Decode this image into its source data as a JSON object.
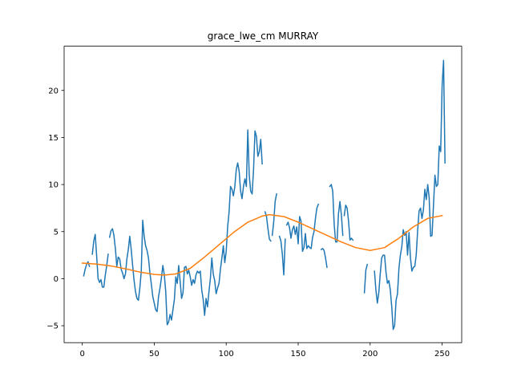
{
  "chart_data": {
    "type": "line",
    "title": "grace_lwe_cm MURRAY",
    "xlabel": "",
    "ylabel": "",
    "xlim": [
      -12.6,
      263.6
    ],
    "ylim": [
      -6.8,
      24.7
    ],
    "xticks": [
      0,
      50,
      100,
      150,
      200,
      250
    ],
    "yticks": [
      -5,
      0,
      5,
      10,
      15,
      20
    ],
    "grid": false,
    "legend": "none",
    "series": [
      {
        "color": "#1f77b4",
        "segments": [
          [
            [
              1,
              0.3
            ],
            [
              2,
              1.0
            ],
            [
              3,
              1.5
            ],
            [
              4,
              1.8
            ],
            [
              5,
              1.3
            ]
          ],
          [
            [
              7,
              2.6
            ],
            [
              8,
              4.0
            ],
            [
              9,
              4.7
            ],
            [
              10,
              2.4
            ],
            [
              11,
              0.0
            ],
            [
              12,
              -0.4
            ],
            [
              13,
              -0.1
            ],
            [
              14,
              -0.9
            ],
            [
              15,
              -0.9
            ],
            [
              16,
              0.4
            ],
            [
              17,
              1.4
            ],
            [
              18,
              2.6
            ]
          ],
          [
            [
              19,
              4.4
            ],
            [
              20,
              5.1
            ],
            [
              21,
              5.3
            ],
            [
              22,
              4.6
            ],
            [
              23,
              3.2
            ],
            [
              24,
              1.3
            ],
            [
              25,
              2.3
            ],
            [
              26,
              2.1
            ],
            [
              27,
              1.0
            ],
            [
              28,
              0.6
            ],
            [
              29,
              0.0
            ],
            [
              30,
              0.5
            ],
            [
              31,
              2.1
            ],
            [
              32,
              3.1
            ],
            [
              33,
              4.5
            ],
            [
              34,
              3.1
            ],
            [
              35,
              1.4
            ],
            [
              36,
              -0.2
            ],
            [
              37,
              -1.4
            ],
            [
              38,
              -2.1
            ],
            [
              39,
              -2.3
            ],
            [
              40,
              -1.0
            ],
            [
              41,
              0.8
            ],
            [
              42,
              6.2
            ],
            [
              43,
              4.5
            ],
            [
              44,
              3.5
            ],
            [
              45,
              3.0
            ],
            [
              46,
              2.2
            ],
            [
              47,
              0.6
            ],
            [
              48,
              -0.6
            ],
            [
              49,
              -1.9
            ],
            [
              50,
              -2.6
            ],
            [
              51,
              -3.3
            ],
            [
              52,
              -3.5
            ],
            [
              53,
              -1.9
            ],
            [
              54,
              -1.0
            ],
            [
              55,
              0.1
            ],
            [
              56,
              1.4
            ],
            [
              57,
              0.4
            ],
            [
              58,
              -1.4
            ],
            [
              59,
              -4.9
            ],
            [
              60,
              -4.6
            ],
            [
              61,
              -3.8
            ],
            [
              62,
              -4.4
            ],
            [
              63,
              -3.3
            ],
            [
              64,
              -2.2
            ],
            [
              65,
              0.2
            ],
            [
              66,
              -0.5
            ],
            [
              67,
              1.4
            ],
            [
              68,
              -0.3
            ],
            [
              69,
              -2.1
            ],
            [
              70,
              -1.5
            ],
            [
              71,
              1.2
            ],
            [
              72,
              1.3
            ],
            [
              73,
              0.5
            ],
            [
              74,
              0.9
            ],
            [
              75,
              0.2
            ],
            [
              76,
              -0.7
            ],
            [
              77,
              -0.1
            ],
            [
              78,
              -0.5
            ],
            [
              79,
              0.4
            ],
            [
              80,
              0.8
            ],
            [
              81,
              0.6
            ],
            [
              82,
              0.8
            ],
            [
              83,
              -1.2
            ],
            [
              84,
              -2.2
            ],
            [
              85,
              -3.9
            ],
            [
              86,
              -2.1
            ],
            [
              87,
              -3.0
            ],
            [
              88,
              -1.4
            ],
            [
              89,
              0.0
            ],
            [
              90,
              2.2
            ],
            [
              91,
              0.5
            ],
            [
              92,
              -0.2
            ],
            [
              93,
              -1.6
            ],
            [
              94,
              -1.0
            ],
            [
              95,
              -0.5
            ],
            [
              96,
              1.0
            ],
            [
              97,
              2.2
            ],
            [
              98,
              3.5
            ],
            [
              99,
              1.7
            ],
            [
              100,
              2.9
            ],
            [
              101,
              5.5
            ],
            [
              102,
              7.1
            ],
            [
              103,
              9.8
            ],
            [
              104,
              9.5
            ],
            [
              105,
              8.8
            ],
            [
              106,
              9.8
            ],
            [
              107,
              11.6
            ],
            [
              108,
              12.3
            ],
            [
              109,
              11.4
            ],
            [
              110,
              9.3
            ],
            [
              111,
              8.5
            ],
            [
              112,
              9.8
            ],
            [
              113,
              10.6
            ],
            [
              114,
              9.8
            ],
            [
              115,
              15.8
            ],
            [
              116,
              11.0
            ],
            [
              117,
              9.3
            ],
            [
              118,
              9.0
            ],
            [
              119,
              11.6
            ],
            [
              120,
              15.7
            ],
            [
              121,
              15.1
            ],
            [
              122,
              13.0
            ],
            [
              123,
              13.5
            ],
            [
              124,
              14.8
            ],
            [
              125,
              12.2
            ]
          ],
          [
            [
              127,
              7.1
            ],
            [
              128,
              6.6
            ],
            [
              129,
              5.3
            ],
            [
              130,
              4.2
            ],
            [
              131,
              4.0
            ]
          ],
          [
            [
              132,
              4.6
            ],
            [
              133,
              6.0
            ],
            [
              134,
              8.2
            ],
            [
              135,
              9.0
            ]
          ],
          [
            [
              137,
              4.5
            ],
            [
              138,
              4.0
            ],
            [
              139,
              2.6
            ],
            [
              140,
              0.4
            ],
            [
              141,
              4.2
            ]
          ],
          [
            [
              142,
              5.7
            ],
            [
              143,
              6.0
            ],
            [
              144,
              5.4
            ],
            [
              145,
              4.3
            ],
            [
              146,
              5.2
            ],
            [
              147,
              5.6
            ],
            [
              148,
              4.7
            ],
            [
              149,
              5.5
            ],
            [
              150,
              3.7
            ],
            [
              151,
              6.6
            ],
            [
              152,
              6.1
            ],
            [
              153,
              2.9
            ],
            [
              154,
              3.3
            ],
            [
              155,
              4.8
            ],
            [
              156,
              3.2
            ],
            [
              157,
              3.5
            ],
            [
              158,
              3.3
            ],
            [
              159,
              3.2
            ],
            [
              160,
              4.4
            ],
            [
              161,
              5.0
            ],
            [
              162,
              6.4
            ],
            [
              163,
              7.5
            ],
            [
              164,
              7.9
            ]
          ],
          [
            [
              166,
              3.1
            ],
            [
              167,
              3.2
            ],
            [
              168,
              3.0
            ],
            [
              169,
              2.2
            ],
            [
              170,
              1.2
            ]
          ],
          [
            [
              172,
              9.8
            ],
            [
              173,
              10.0
            ],
            [
              174,
              9.3
            ],
            [
              175,
              5.8
            ],
            [
              176,
              3.9
            ],
            [
              177,
              3.9
            ],
            [
              178,
              6.9
            ],
            [
              179,
              8.2
            ],
            [
              180,
              6.8
            ],
            [
              181,
              4.6
            ]
          ],
          [
            [
              182,
              6.7
            ],
            [
              183,
              7.8
            ],
            [
              184,
              7.5
            ],
            [
              185,
              6.1
            ],
            [
              186,
              4.1
            ],
            [
              187,
              4.3
            ],
            [
              188,
              4.1
            ]
          ],
          [
            [
              196,
              -1.5
            ],
            [
              197,
              0.9
            ],
            [
              198,
              1.5
            ]
          ],
          [
            [
              203,
              0.8
            ],
            [
              204,
              -1.2
            ],
            [
              205,
              -2.6
            ],
            [
              206,
              -1.5
            ],
            [
              207,
              0.5
            ],
            [
              208,
              2.2
            ],
            [
              209,
              2.5
            ],
            [
              210,
              2.5
            ],
            [
              211,
              0.7
            ],
            [
              212,
              -0.5
            ],
            [
              213,
              -0.2
            ],
            [
              214,
              -1.2
            ],
            [
              215,
              -3.0
            ],
            [
              216,
              -5.4
            ],
            [
              217,
              -5.0
            ],
            [
              218,
              -2.3
            ],
            [
              219,
              -1.6
            ],
            [
              220,
              1.1
            ],
            [
              221,
              2.5
            ],
            [
              222,
              3.4
            ],
            [
              223,
              5.2
            ],
            [
              224,
              4.6
            ],
            [
              225,
              5.0
            ],
            [
              226,
              2.5
            ],
            [
              227,
              4.9
            ],
            [
              228,
              2.2
            ],
            [
              229,
              0.8
            ],
            [
              230,
              1.2
            ],
            [
              231,
              1.3
            ],
            [
              232,
              2.5
            ],
            [
              233,
              5.1
            ],
            [
              234,
              7.2
            ],
            [
              235,
              7.5
            ],
            [
              236,
              6.4
            ],
            [
              237,
              7.3
            ],
            [
              238,
              9.5
            ],
            [
              239,
              8.4
            ],
            [
              240,
              10.0
            ],
            [
              241,
              8.6
            ],
            [
              242,
              4.5
            ],
            [
              243,
              4.6
            ],
            [
              244,
              7.8
            ],
            [
              245,
              11.0
            ],
            [
              246,
              9.8
            ],
            [
              247,
              10.0
            ],
            [
              248,
              14.1
            ],
            [
              249,
              13.5
            ],
            [
              250,
              20.5
            ],
            [
              251,
              23.2
            ],
            [
              252,
              12.3
            ]
          ]
        ]
      },
      {
        "color": "#ff7f0e",
        "segments": [
          [
            [
              0,
              1.65
            ],
            [
              10,
              1.55
            ],
            [
              20,
              1.35
            ],
            [
              30,
              1.05
            ],
            [
              40,
              0.7
            ],
            [
              50,
              0.45
            ],
            [
              57,
              0.38
            ],
            [
              65,
              0.5
            ],
            [
              75,
              1.1
            ],
            [
              85,
              2.3
            ],
            [
              95,
              3.6
            ],
            [
              105,
              4.9
            ],
            [
              115,
              6.0
            ],
            [
              125,
              6.65
            ],
            [
              130,
              6.8
            ],
            [
              140,
              6.6
            ],
            [
              150,
              6.0
            ],
            [
              160,
              5.3
            ],
            [
              170,
              4.6
            ],
            [
              180,
              3.9
            ],
            [
              190,
              3.3
            ],
            [
              200,
              3.0
            ],
            [
              210,
              3.3
            ],
            [
              220,
              4.3
            ],
            [
              230,
              5.5
            ],
            [
              240,
              6.4
            ],
            [
              250,
              6.7
            ]
          ]
        ]
      }
    ]
  }
}
